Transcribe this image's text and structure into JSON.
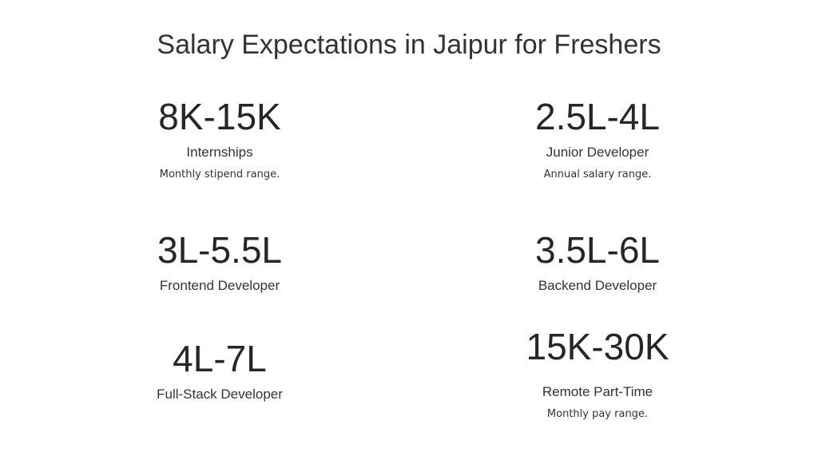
{
  "title": "Salary Expectations in Jaipur for Freshers",
  "stats": [
    {
      "value": "8K-15K",
      "label": "Internships",
      "desc": "Monthly stipend range."
    },
    {
      "value": "2.5L-4L",
      "label": "Junior Developer",
      "desc": "Annual salary range."
    },
    {
      "value": "3L-5.5L",
      "label": "Frontend Developer",
      "desc": ""
    },
    {
      "value": "3.5L-6L",
      "label": "Backend Developer",
      "desc": ""
    },
    {
      "value": "4L-7L",
      "label": "Full-Stack Developer",
      "desc": ""
    },
    {
      "value": "15K-30K",
      "label": "Remote Part-Time",
      "desc": "Monthly pay range."
    }
  ]
}
